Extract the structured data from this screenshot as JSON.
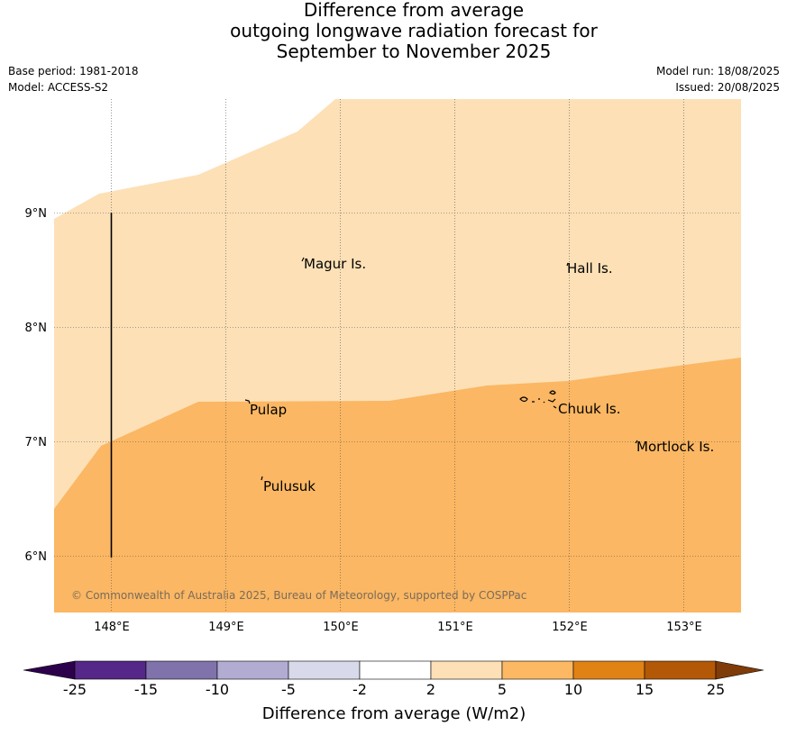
{
  "title_lines": [
    "Difference from average",
    "outgoing longwave radiation forecast for",
    "September to November 2025"
  ],
  "meta_left": [
    "Base period: 1981-2018",
    "Model: ACCESS-S2"
  ],
  "meta_right": [
    "Model run: 18/08/2025",
    "Issued: 20/08/2025"
  ],
  "map": {
    "lon_ticks": [
      "148°E",
      "149°E",
      "150°E",
      "151°E",
      "152°E",
      "153°E"
    ],
    "lat_ticks": [
      "9°N",
      "8°N",
      "7°N",
      "6°N"
    ],
    "places": [
      "Magur Is.",
      "Hall Is.",
      "Pulap",
      "Chuuk Is.",
      "Mortlock Is.",
      "Pulusuk"
    ],
    "copyright": "© Commonwealth of Australia 2025, Bureau of Meteorology, supported by COSPPac",
    "colors": {
      "light_orange": "#fde0b6",
      "mid_orange": "#fbb763"
    }
  },
  "colorbar": {
    "labels": [
      "-25",
      "-15",
      "-10",
      "-5",
      "-2",
      "2",
      "5",
      "10",
      "15",
      "25"
    ],
    "colors": [
      "#2d004b",
      "#542788",
      "#8073ac",
      "#b2abd2",
      "#d8daeb",
      "#ffffff",
      "#fee0b6",
      "#fdb863",
      "#e08214",
      "#b35806",
      "#7f3b08"
    ],
    "title": "Difference from average (W/m2)"
  }
}
